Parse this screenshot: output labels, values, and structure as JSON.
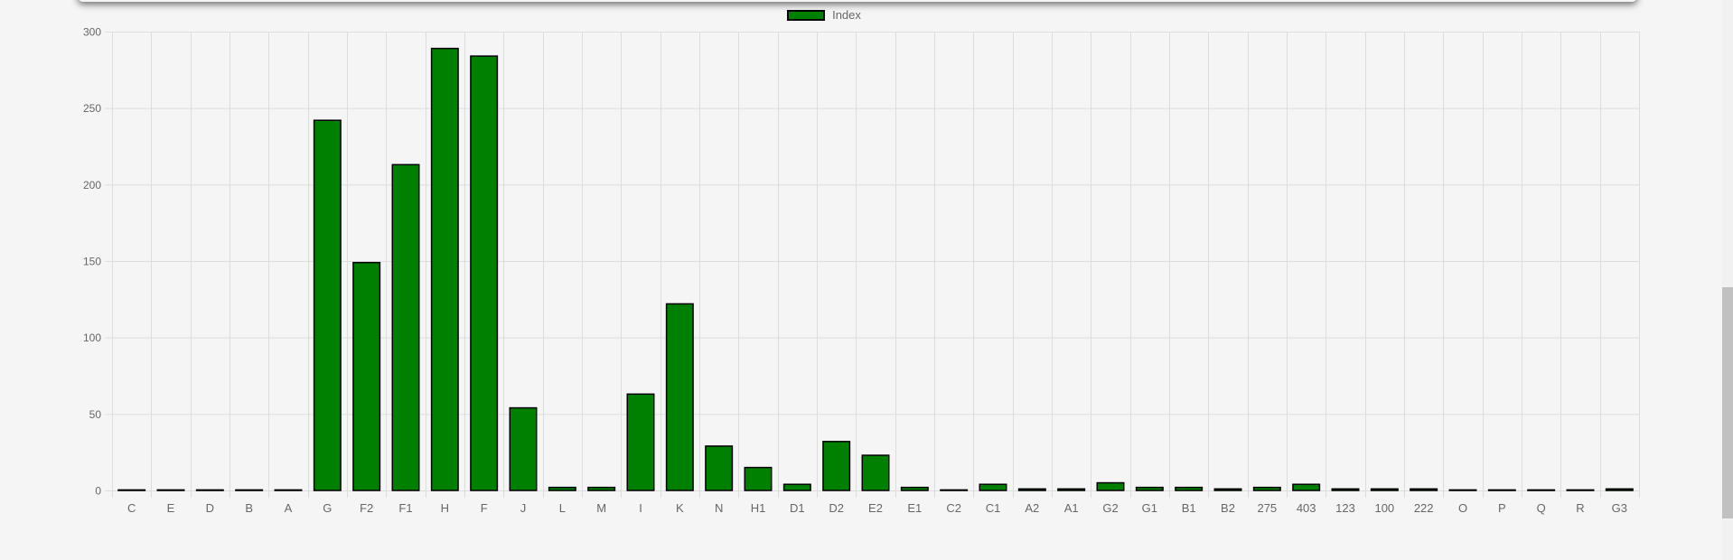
{
  "chart_data": {
    "type": "bar",
    "legend": {
      "label": "Index",
      "placement": "top"
    },
    "categories": [
      "C",
      "E",
      "D",
      "B",
      "A",
      "G",
      "F2",
      "F1",
      "H",
      "F",
      "J",
      "L",
      "M",
      "I",
      "K",
      "N",
      "H1",
      "D1",
      "D2",
      "E2",
      "E1",
      "C2",
      "C1",
      "A2",
      "A1",
      "G2",
      "G1",
      "B1",
      "B2",
      "275",
      "403",
      "123",
      "100",
      "222",
      "O",
      "P",
      "Q",
      "R",
      "G3"
    ],
    "series": [
      {
        "name": "Index",
        "values": [
          0,
          0,
          0,
          0,
          0,
          242,
          149,
          213,
          289,
          284,
          54,
          2,
          2,
          63,
          122,
          29,
          15,
          4,
          32,
          23,
          2,
          0,
          4,
          1,
          1,
          5,
          2,
          2,
          1,
          2,
          4,
          1,
          1,
          1,
          0,
          0,
          0,
          0,
          1
        ]
      }
    ],
    "ylim": [
      0,
      300
    ],
    "yticks": [
      0,
      50,
      100,
      150,
      200,
      250,
      300
    ],
    "grid": true,
    "colors": {
      "bar": "#008000",
      "bar_border": "#000000",
      "grid": "#dddddd",
      "tick_text": "#666666"
    }
  }
}
